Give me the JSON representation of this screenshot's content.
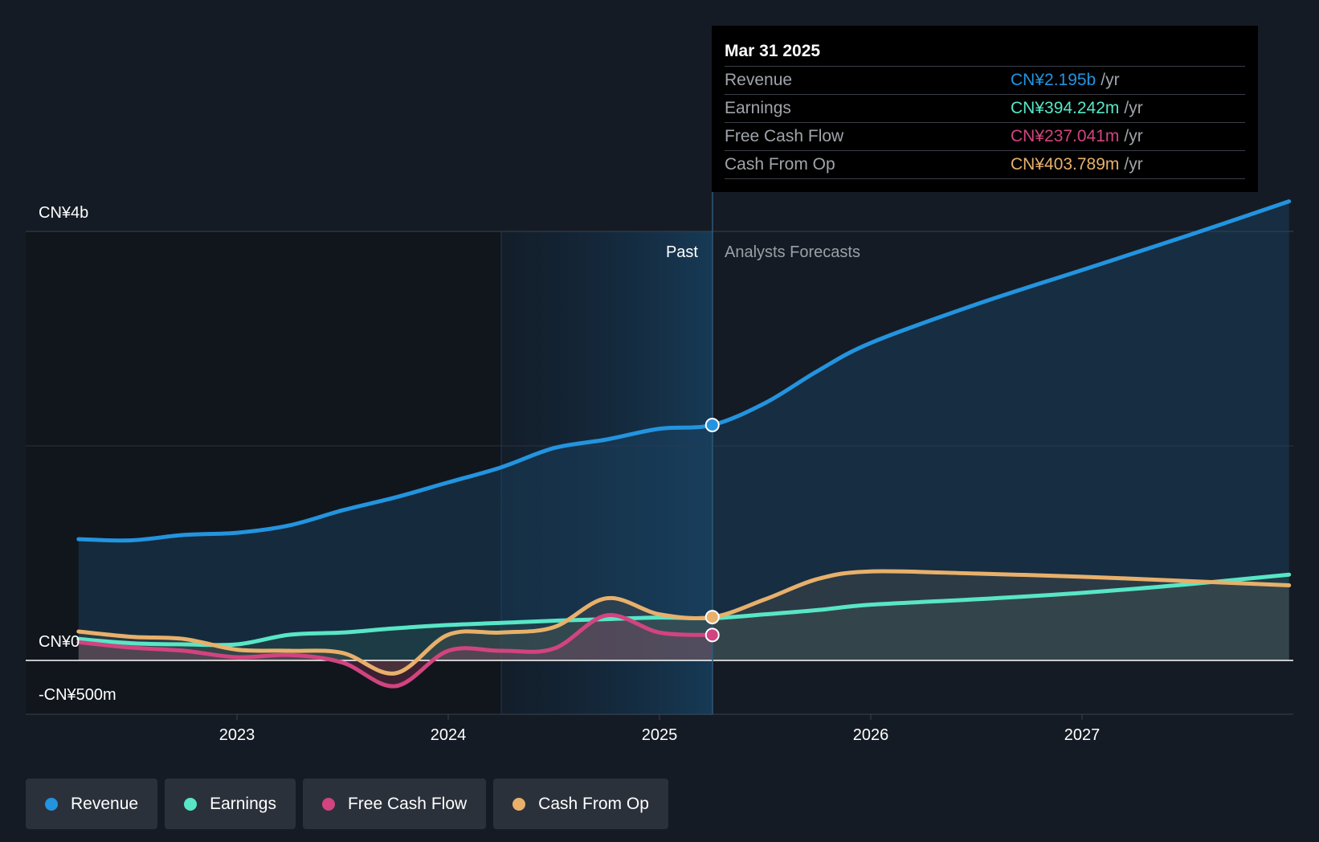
{
  "chart_data": {
    "type": "area",
    "y_axis": {
      "max_label": "CN¥4b",
      "zero_label": "CN¥0",
      "min_label": "-CN¥500m",
      "ylim": [
        -500,
        4000
      ],
      "unit": "CN¥ millions"
    },
    "x_axis": {
      "ticks": [
        "2023",
        "2024",
        "2025",
        "2026",
        "2027"
      ]
    },
    "past_label": "Past",
    "forecast_label": "Analysts Forecasts",
    "past_end": 2025.25,
    "series": [
      {
        "name": "Revenue",
        "color": "#2394df",
        "points": [
          [
            2022.25,
            1130
          ],
          [
            2022.5,
            1120
          ],
          [
            2022.75,
            1170
          ],
          [
            2023.0,
            1190
          ],
          [
            2023.25,
            1260
          ],
          [
            2023.5,
            1400
          ],
          [
            2023.75,
            1520
          ],
          [
            2024.0,
            1660
          ],
          [
            2024.25,
            1800
          ],
          [
            2024.5,
            1980
          ],
          [
            2024.75,
            2060
          ],
          [
            2025.0,
            2160
          ],
          [
            2025.25,
            2195
          ],
          [
            2025.5,
            2400
          ],
          [
            2025.75,
            2700
          ],
          [
            2026.0,
            2960
          ],
          [
            2026.5,
            3320
          ],
          [
            2027.0,
            3640
          ],
          [
            2027.5,
            3960
          ],
          [
            2027.98,
            4280
          ]
        ]
      },
      {
        "name": "Earnings",
        "color": "#58e6c6",
        "points": [
          [
            2022.25,
            200
          ],
          [
            2022.5,
            160
          ],
          [
            2022.75,
            150
          ],
          [
            2023.0,
            150
          ],
          [
            2023.25,
            240
          ],
          [
            2023.5,
            260
          ],
          [
            2023.75,
            300
          ],
          [
            2024.0,
            330
          ],
          [
            2024.25,
            350
          ],
          [
            2024.5,
            370
          ],
          [
            2024.75,
            385
          ],
          [
            2025.0,
            400
          ],
          [
            2025.25,
            394
          ],
          [
            2025.5,
            430
          ],
          [
            2025.75,
            470
          ],
          [
            2026.0,
            520
          ],
          [
            2026.5,
            570
          ],
          [
            2027.0,
            630
          ],
          [
            2027.5,
            710
          ],
          [
            2027.98,
            800
          ]
        ]
      },
      {
        "name": "Free Cash Flow",
        "color": "#d1447f",
        "points": [
          [
            2022.25,
            170
          ],
          [
            2022.5,
            120
          ],
          [
            2022.75,
            90
          ],
          [
            2023.0,
            30
          ],
          [
            2023.25,
            50
          ],
          [
            2023.5,
            -20
          ],
          [
            2023.75,
            -240
          ],
          [
            2024.0,
            90
          ],
          [
            2024.25,
            90
          ],
          [
            2024.5,
            110
          ],
          [
            2024.75,
            420
          ],
          [
            2025.0,
            260
          ],
          [
            2025.25,
            237
          ]
        ]
      },
      {
        "name": "Cash From Op",
        "color": "#e8b06b",
        "points": [
          [
            2022.25,
            270
          ],
          [
            2022.5,
            220
          ],
          [
            2022.75,
            200
          ],
          [
            2023.0,
            100
          ],
          [
            2023.25,
            90
          ],
          [
            2023.5,
            70
          ],
          [
            2023.75,
            -120
          ],
          [
            2024.0,
            240
          ],
          [
            2024.25,
            260
          ],
          [
            2024.5,
            310
          ],
          [
            2024.75,
            580
          ],
          [
            2025.0,
            430
          ],
          [
            2025.25,
            404
          ],
          [
            2025.5,
            570
          ],
          [
            2025.75,
            760
          ],
          [
            2026.0,
            830
          ],
          [
            2026.5,
            810
          ],
          [
            2027.0,
            780
          ],
          [
            2027.5,
            740
          ],
          [
            2027.98,
            700
          ]
        ]
      }
    ]
  },
  "tooltip": {
    "date": "Mar 31 2025",
    "unit": "/yr",
    "rows": [
      {
        "name": "Revenue",
        "value": "CN¥2.195b",
        "color": "#2394df"
      },
      {
        "name": "Earnings",
        "value": "CN¥394.242m",
        "color": "#58e6c6"
      },
      {
        "name": "Free Cash Flow",
        "value": "CN¥237.041m",
        "color": "#d1447f"
      },
      {
        "name": "Cash From Op",
        "value": "CN¥403.789m",
        "color": "#e8b06b"
      }
    ]
  },
  "legend": [
    {
      "label": "Revenue",
      "color": "#2394df"
    },
    {
      "label": "Earnings",
      "color": "#58e6c6"
    },
    {
      "label": "Free Cash Flow",
      "color": "#d1447f"
    },
    {
      "label": "Cash From Op",
      "color": "#e8b06b"
    }
  ]
}
